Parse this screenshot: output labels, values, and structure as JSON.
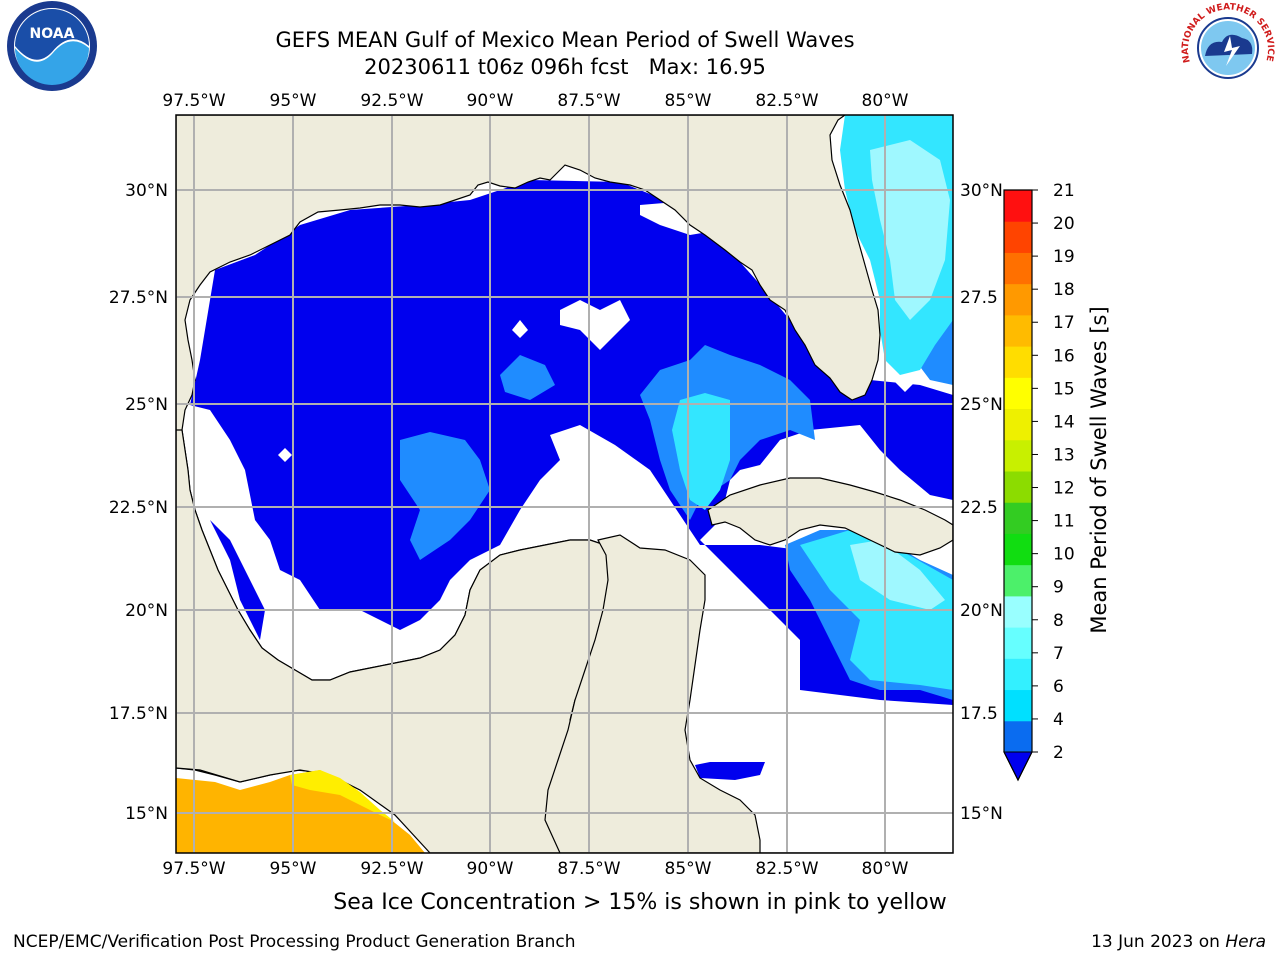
{
  "title": {
    "line1": "GEFS MEAN Gulf of Mexico Mean Period of Swell Waves",
    "line2": "20230611 t06z 096h fcst   Max: 16.95"
  },
  "axes": {
    "lon_labels": [
      "97.5°W",
      "95°W",
      "92.5°W",
      "90°W",
      "87.5°W",
      "85°W",
      "82.5°W",
      "80°W"
    ],
    "lat_labels": [
      "30°N",
      "27.5°N",
      "25°N",
      "22.5°N",
      "20°N",
      "17.5°N",
      "15°N"
    ],
    "right_lat_labels": [
      "30°N",
      "27.5",
      "25°N",
      "22.5",
      "20°N",
      "17.5",
      "15°N"
    ]
  },
  "colorbar": {
    "label": "Mean Period of Swell Waves [s]",
    "ticks": [
      "2",
      "4",
      "6",
      "7",
      "8",
      "9",
      "10",
      "11",
      "12",
      "13",
      "14",
      "15",
      "16",
      "17",
      "18",
      "19",
      "20",
      "21"
    ],
    "colors": [
      "#0a6cf0",
      "#00e0ff",
      "#33f0ff",
      "#66ffff",
      "#99ffff",
      "#4cf06a",
      "#11dd11",
      "#33cc22",
      "#8cdc00",
      "#c8f000",
      "#eef000",
      "#ffff00",
      "#ffdd00",
      "#ffbb00",
      "#ff9900",
      "#ff7000",
      "#ff4400",
      "#ff1010"
    ],
    "under_color": "#0000ee"
  },
  "colors": {
    "land": "#eeecdc",
    "ocean_missing": "#ffffff",
    "swell_low": "#0000ee",
    "swell_2_4": "#1f8cff",
    "swell_4_6": "#33e6ff",
    "swell_6_8": "#9ff8ff",
    "ice_orange": "#ffb400",
    "ice_yellow": "#ffee00",
    "grid": "#b0b0b0"
  },
  "note": "Sea Ice Concentration > 15% is shown in pink to yellow",
  "credit_left": "NCEP/EMC/Verification Post Processing Product Generation Branch",
  "credit_right_prefix": "13 Jun 2023 on ",
  "credit_right_host": "Hera",
  "logos": {
    "noaa_text": "NOAA",
    "nws_text": "NATIONAL WEATHER SERVICE"
  }
}
